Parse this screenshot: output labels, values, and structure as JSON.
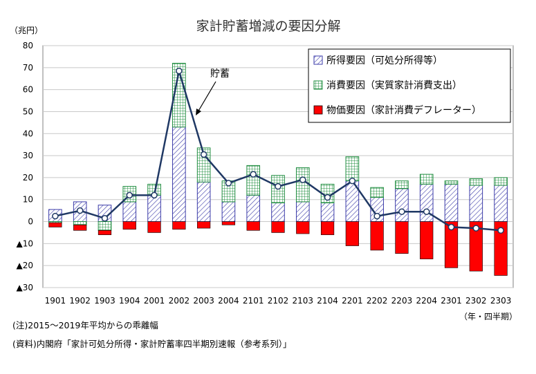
{
  "chart_data": {
    "type": "bar",
    "title": "家計貯蓄増減の要因分解",
    "ylabel": "（兆円）",
    "xlabel": "（年・四半期）",
    "ylim": [
      -30,
      80
    ],
    "yticks": [
      80,
      70,
      60,
      50,
      40,
      30,
      20,
      10,
      0,
      -10,
      -20,
      -30
    ],
    "ytick_labels": [
      "80",
      "70",
      "60",
      "50",
      "40",
      "30",
      "20",
      "10",
      "0",
      "▲10",
      "▲20",
      "▲30"
    ],
    "grid": true,
    "legend_position": "top-right",
    "categories": [
      "1901",
      "1902",
      "1903",
      "1904",
      "2001",
      "2002",
      "2003",
      "2004",
      "2101",
      "2102",
      "2103",
      "2104",
      "2201",
      "2202",
      "2203",
      "2204",
      "2301",
      "2302",
      "2303"
    ],
    "series": [
      {
        "name": "所得要因（可処分所得等）",
        "kind": "stacked-bar",
        "color": "#3a3aa8",
        "pattern": "diagonal-hatch",
        "values": [
          5.5,
          9,
          7.5,
          9,
          12,
          43,
          18,
          9,
          12,
          8.5,
          9,
          8.5,
          18.5,
          11,
          15,
          17,
          17,
          16.5,
          16.5
        ]
      },
      {
        "name": "消費要因（実質家計消費支出）",
        "kind": "stacked-bar",
        "color": "#1e8c3e",
        "pattern": "grid",
        "values": [
          -0.5,
          -1.5,
          -4,
          7,
          5,
          29,
          15.5,
          9.5,
          13.5,
          12.5,
          15.5,
          8.5,
          11,
          4.5,
          3.5,
          4.5,
          1.5,
          3,
          3.5
        ]
      },
      {
        "name": "物価要因（家計消費デフレーター）",
        "kind": "stacked-bar",
        "color": "#ff0000",
        "pattern": "solid",
        "values": [
          -2,
          -2.5,
          -2,
          -3.5,
          -5,
          -3.5,
          -3,
          -1.5,
          -4,
          -5,
          -5.5,
          -6,
          -11,
          -13,
          -14.5,
          -17,
          -21,
          -22.5,
          -24.5
        ]
      },
      {
        "name": "貯蓄",
        "kind": "line",
        "color": "#1f3864",
        "values": [
          2.5,
          5,
          1.5,
          12,
          12,
          68.5,
          30.5,
          17.5,
          21.5,
          16,
          19,
          11,
          18.5,
          2.5,
          4.5,
          4.5,
          -2.5,
          -3,
          -4
        ]
      }
    ],
    "annotation": "貯蓄"
  },
  "notes": {
    "note": "(注)2015～2019年平均からの乖離幅",
    "source": "(資料)内閣府「家計可処分所得・家計貯蓄率四半期別速報（参考系列）」"
  }
}
